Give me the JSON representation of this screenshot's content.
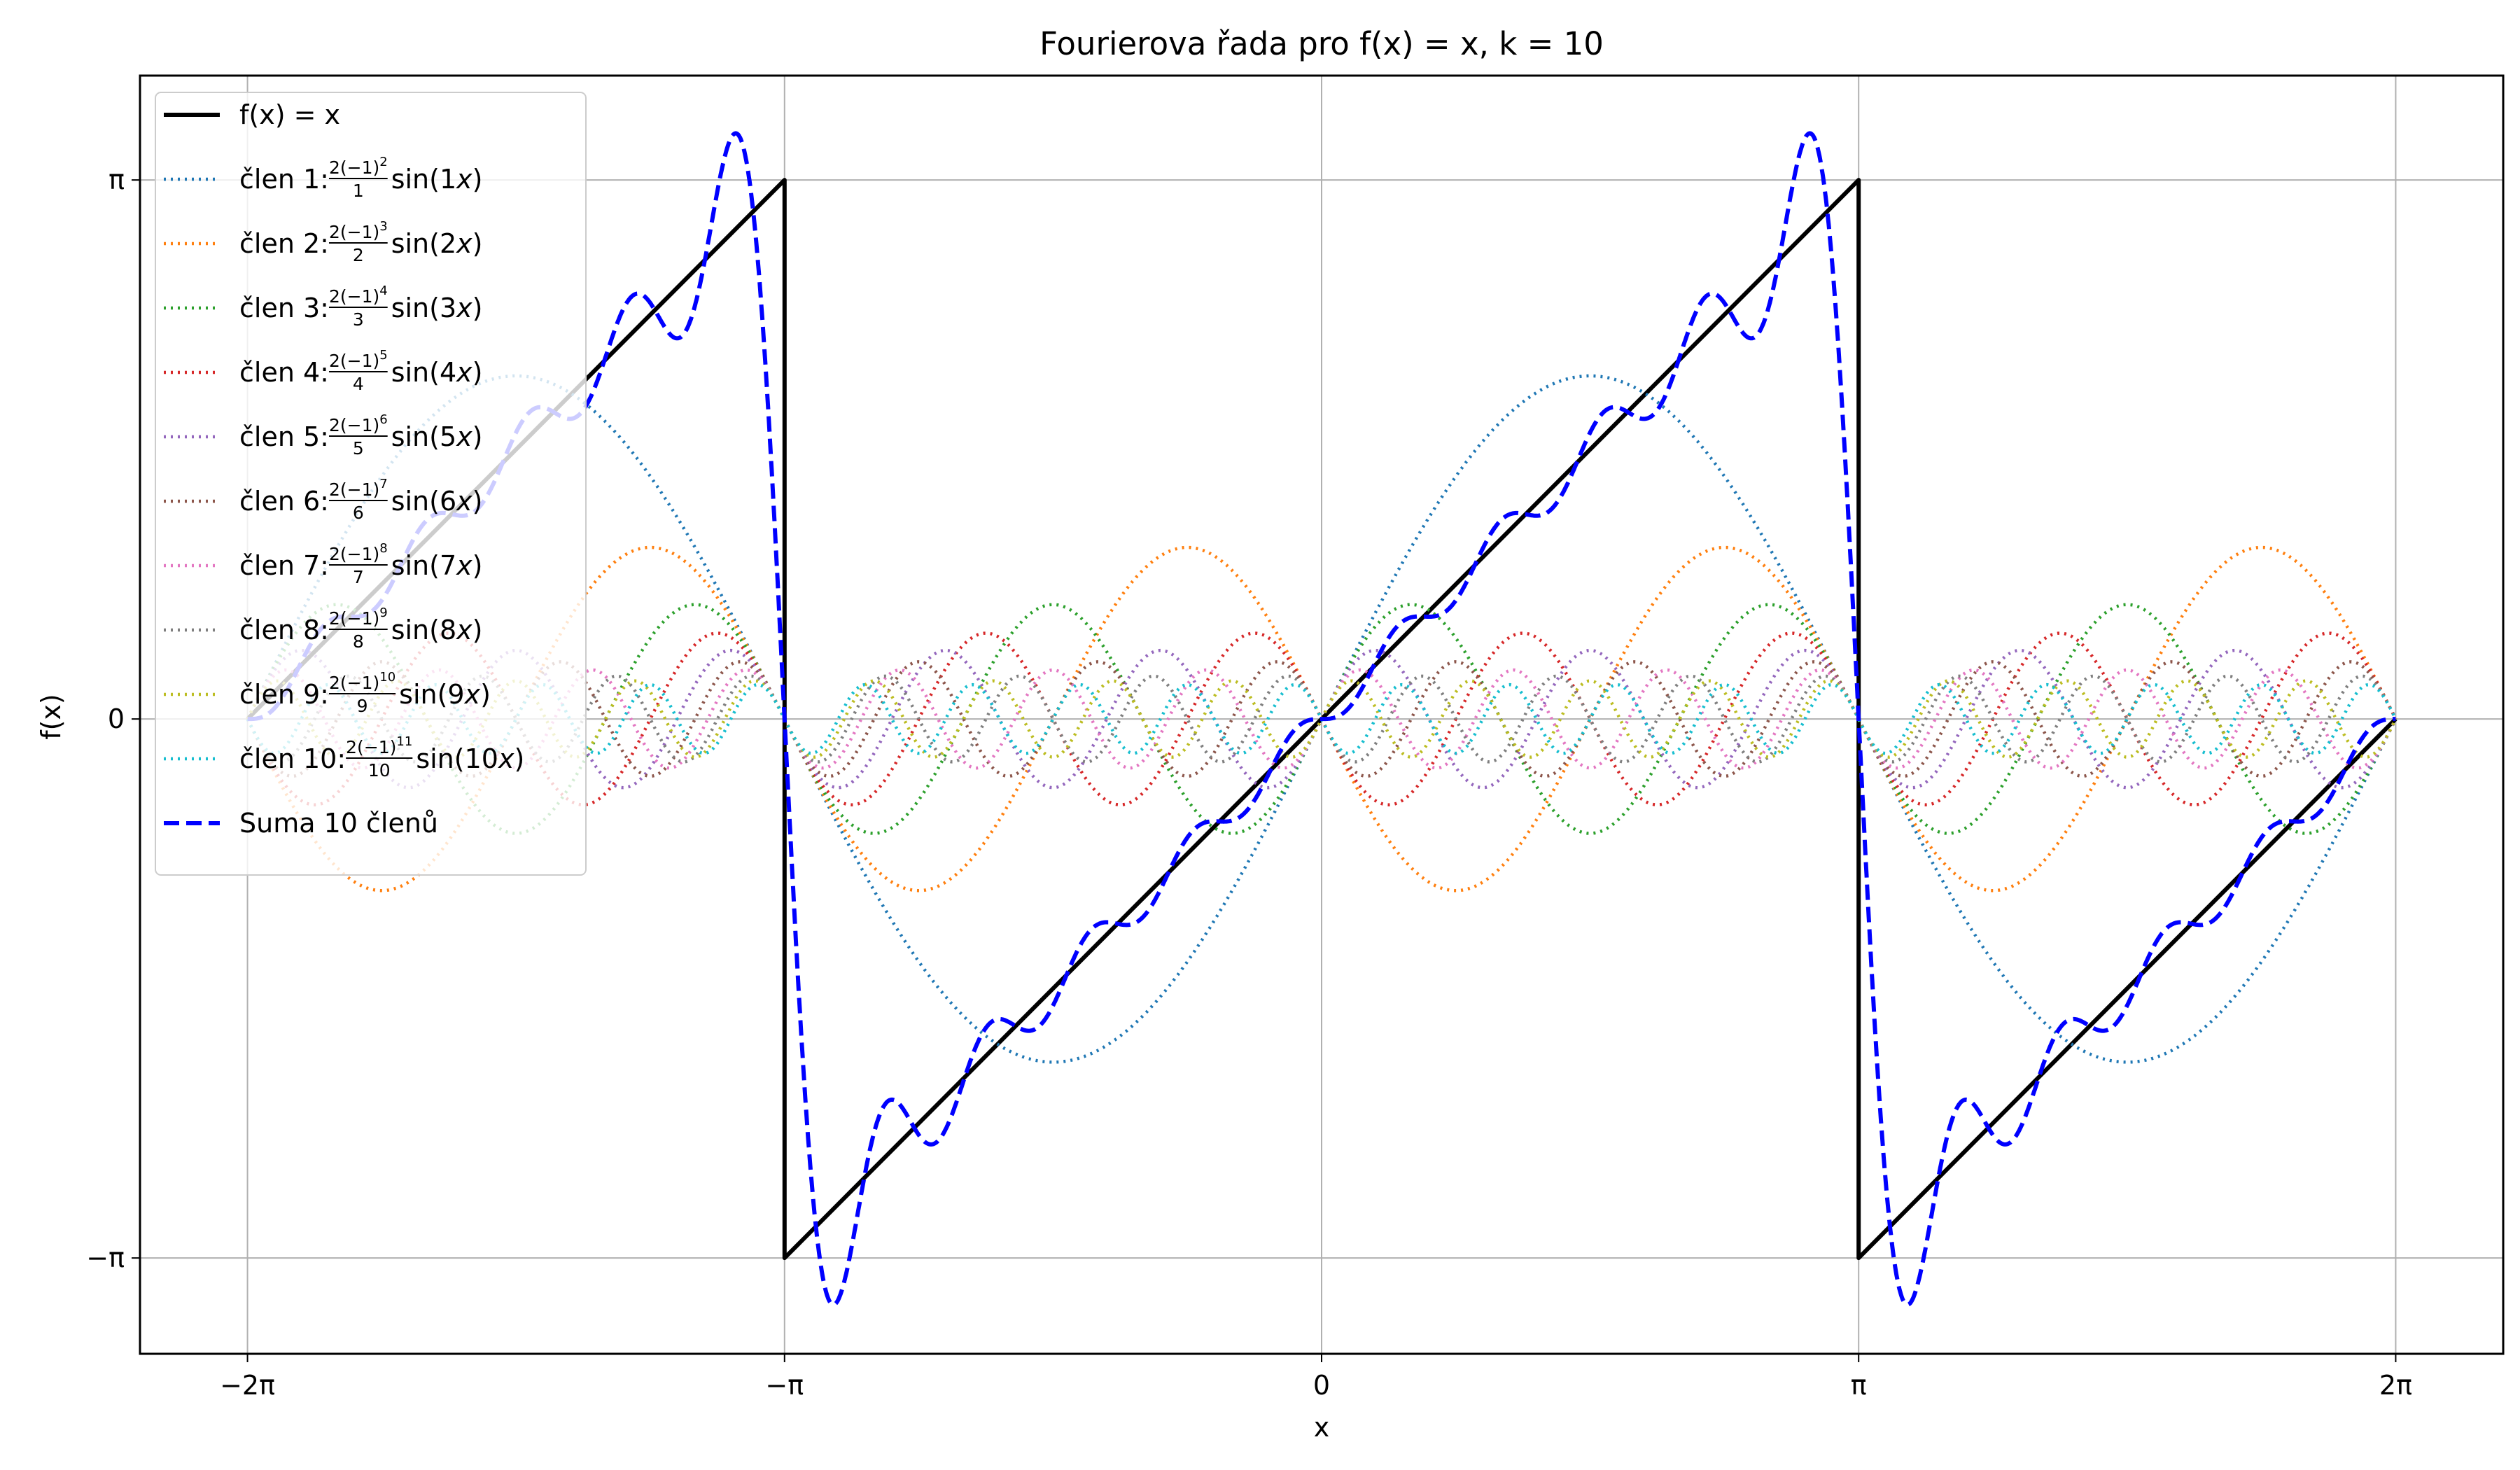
{
  "chart_data": {
    "type": "line",
    "title": "Fourierova řada pro f(x) = x, k = 10",
    "xlabel": "x",
    "ylabel": "f(x)",
    "xlim": [
      -6.912,
      6.912
    ],
    "ylim": [
      -3.7,
      3.75
    ],
    "x_ticks": [
      {
        "value": -6.2832,
        "label": "−2π"
      },
      {
        "value": -3.1416,
        "label": "−π"
      },
      {
        "value": 0,
        "label": "0"
      },
      {
        "value": 3.1416,
        "label": "π"
      },
      {
        "value": 6.2832,
        "label": "2π"
      }
    ],
    "y_ticks": [
      {
        "value": -3.1416,
        "label": "−π"
      },
      {
        "value": 0,
        "label": "0"
      },
      {
        "value": 3.1416,
        "label": "π"
      }
    ],
    "grid": true,
    "legend_position": "upper-left",
    "x_range": [
      -6.2832,
      6.2832
    ],
    "series": [
      {
        "name": "f(x) = x",
        "kind": "sawtooth",
        "color": "#000000",
        "style": "solid"
      },
      {
        "name": "člen 1",
        "kind": "term",
        "n": 1,
        "coefficient": 2,
        "color": "#1f77b4",
        "style": "dotted",
        "formula": {
          "prefix": "člen 1: ",
          "num": "2(−1)",
          "exp": "2",
          "den": "1",
          "sin": "sin(1",
          "var": "x",
          "close": ")"
        }
      },
      {
        "name": "člen 2",
        "kind": "term",
        "n": 2,
        "coefficient": -1,
        "color": "#ff7f0e",
        "style": "dotted",
        "formula": {
          "prefix": "člen 2: ",
          "num": "2(−1)",
          "exp": "3",
          "den": "2",
          "sin": "sin(2",
          "var": "x",
          "close": ")"
        }
      },
      {
        "name": "člen 3",
        "kind": "term",
        "n": 3,
        "coefficient": 0.6667,
        "color": "#2ca02c",
        "style": "dotted",
        "formula": {
          "prefix": "člen 3: ",
          "num": "2(−1)",
          "exp": "4",
          "den": "3",
          "sin": "sin(3",
          "var": "x",
          "close": ")"
        }
      },
      {
        "name": "člen 4",
        "kind": "term",
        "n": 4,
        "coefficient": -0.5,
        "color": "#d62728",
        "style": "dotted",
        "formula": {
          "prefix": "člen 4: ",
          "num": "2(−1)",
          "exp": "5",
          "den": "4",
          "sin": "sin(4",
          "var": "x",
          "close": ")"
        }
      },
      {
        "name": "člen 5",
        "kind": "term",
        "n": 5,
        "coefficient": 0.4,
        "color": "#9467bd",
        "style": "dotted",
        "formula": {
          "prefix": "člen 5: ",
          "num": "2(−1)",
          "exp": "6",
          "den": "5",
          "sin": "sin(5",
          "var": "x",
          "close": ")"
        }
      },
      {
        "name": "člen 6",
        "kind": "term",
        "n": 6,
        "coefficient": -0.3333,
        "color": "#8c564b",
        "style": "dotted",
        "formula": {
          "prefix": "člen 6: ",
          "num": "2(−1)",
          "exp": "7",
          "den": "6",
          "sin": "sin(6",
          "var": "x",
          "close": ")"
        }
      },
      {
        "name": "člen 7",
        "kind": "term",
        "n": 7,
        "coefficient": 0.2857,
        "color": "#e377c2",
        "style": "dotted",
        "formula": {
          "prefix": "člen 7: ",
          "num": "2(−1)",
          "exp": "8",
          "den": "7",
          "sin": "sin(7",
          "var": "x",
          "close": ")"
        }
      },
      {
        "name": "člen 8",
        "kind": "term",
        "n": 8,
        "coefficient": -0.25,
        "color": "#7f7f7f",
        "style": "dotted",
        "formula": {
          "prefix": "člen 8: ",
          "num": "2(−1)",
          "exp": "9",
          "den": "8",
          "sin": "sin(8",
          "var": "x",
          "close": ")"
        }
      },
      {
        "name": "člen 9",
        "kind": "term",
        "n": 9,
        "coefficient": 0.2222,
        "color": "#bcbd22",
        "style": "dotted",
        "formula": {
          "prefix": "člen 9: ",
          "num": "2(−1)",
          "exp": "10",
          "den": "9",
          "sin": "sin(9",
          "var": "x",
          "close": ")"
        }
      },
      {
        "name": "člen 10",
        "kind": "term",
        "n": 10,
        "coefficient": -0.2,
        "color": "#17becf",
        "style": "dotted",
        "formula": {
          "prefix": "člen 10: ",
          "num": "2(−1)",
          "exp": "11",
          "den": "10",
          "sin": "sin(10",
          "var": "x",
          "close": ")"
        }
      },
      {
        "name": "Suma 10 členů",
        "kind": "partial_sum",
        "terms": 10,
        "color": "#0000ff",
        "style": "dashed"
      }
    ]
  }
}
